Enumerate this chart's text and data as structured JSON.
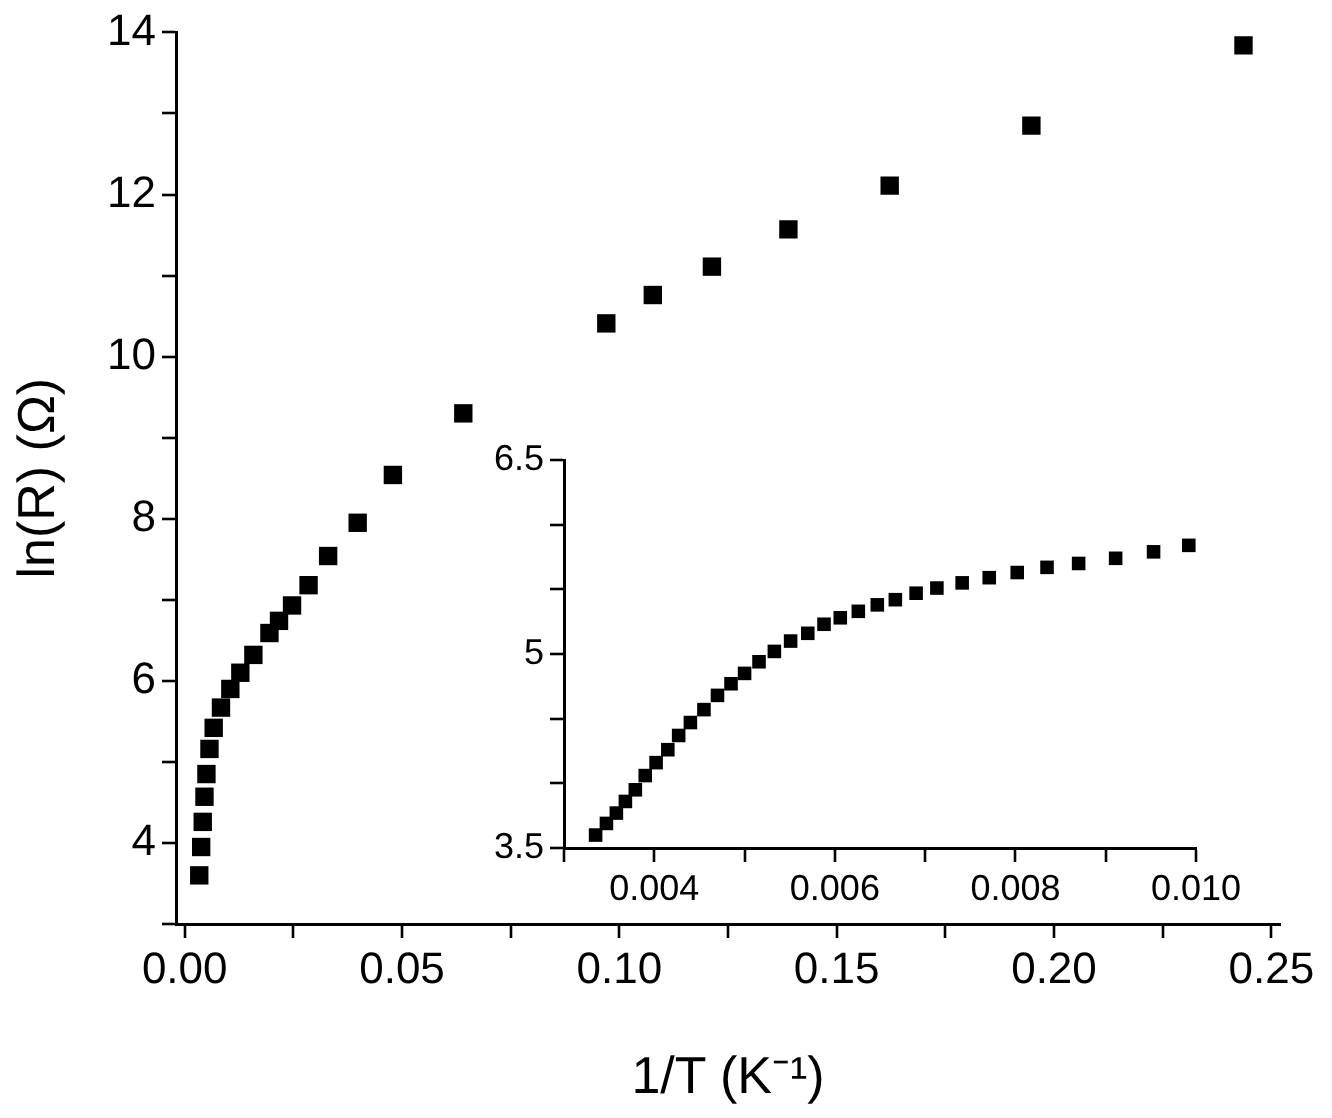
{
  "chart_data": [
    {
      "type": "scatter",
      "xlabel": "1/T (K⁻¹)",
      "ylabel": "ln(R) (Ω)",
      "marker": "square",
      "grid": false,
      "legend": false,
      "xlim": [
        -0.002,
        0.252
      ],
      "ylim": [
        3,
        14
      ],
      "xticks": [
        {
          "value": 0,
          "label": "0.00"
        },
        {
          "value": 0.025,
          "label": null
        },
        0.05,
        {
          "value": 0.075,
          "label": null
        },
        {
          "value": 0.1,
          "label": "0.10"
        },
        {
          "value": 0.125,
          "label": null
        },
        0.15,
        {
          "value": 0.175,
          "label": null
        },
        {
          "value": 0.2,
          "label": "0.20"
        },
        {
          "value": 0.225,
          "label": null
        },
        0.25
      ],
      "yticks": [
        {
          "value": 3,
          "label": null
        },
        4,
        {
          "value": 5,
          "label": null
        },
        6,
        {
          "value": 7,
          "label": null
        },
        8,
        {
          "value": 9,
          "label": null
        },
        10,
        {
          "value": 11,
          "label": null
        },
        12,
        {
          "value": 13,
          "label": null
        },
        14
      ],
      "series": [
        {
          "color": "#000000",
          "x": [
            0.00335,
            0.00379,
            0.00415,
            0.00455,
            0.005,
            0.0057,
            0.00667,
            0.00835,
            0.0105,
            0.0128,
            0.0158,
            0.0195,
            0.0217,
            0.0247,
            0.0285,
            0.033,
            0.0398,
            0.0479,
            0.0641,
            0.097,
            0.1077,
            0.1213,
            0.1389,
            0.1622,
            0.1948,
            0.2436
          ],
          "values": [
            3.6,
            3.95,
            4.26,
            4.57,
            4.85,
            5.16,
            5.42,
            5.67,
            5.9,
            6.1,
            6.32,
            6.59,
            6.74,
            6.93,
            7.18,
            7.54,
            7.95,
            8.54,
            9.3,
            10.41,
            10.76,
            11.11,
            11.57,
            12.11,
            12.85,
            13.84
          ]
        }
      ]
    },
    {
      "type": "scatter",
      "marker": "square",
      "grid": false,
      "legend": false,
      "xlim": [
        0.003,
        0.01
      ],
      "ylim": [
        3.5,
        6.5
      ],
      "xticks": [
        {
          "value": 0.003,
          "label": null
        },
        0.004,
        {
          "value": 0.005,
          "label": null
        },
        0.006,
        {
          "value": 0.007,
          "label": null
        },
        0.008,
        {
          "value": 0.009,
          "label": null
        },
        {
          "value": 0.01,
          "label": "0.010"
        }
      ],
      "yticks": [
        3.5,
        {
          "value": 4,
          "label": null
        },
        {
          "value": 4.5,
          "label": null
        },
        5,
        {
          "value": 5.5,
          "label": null
        },
        {
          "value": 6,
          "label": null
        },
        6.5
      ],
      "series": [
        {
          "color": "#000000",
          "x": [
            0.00335,
            0.00347,
            0.00358,
            0.00368,
            0.00379,
            0.0039,
            0.00402,
            0.00415,
            0.00427,
            0.0044,
            0.00455,
            0.0047,
            0.00485,
            0.005,
            0.00516,
            0.00533,
            0.00551,
            0.0057,
            0.00588,
            0.00606,
            0.00626,
            0.00647,
            0.00667,
            0.0069,
            0.00713,
            0.00741,
            0.00771,
            0.00802,
            0.00835,
            0.0087,
            0.00911,
            0.00953,
            0.00992
          ],
          "values": [
            3.6,
            3.69,
            3.77,
            3.86,
            3.95,
            4.06,
            4.16,
            4.26,
            4.37,
            4.47,
            4.57,
            4.68,
            4.77,
            4.85,
            4.94,
            5.02,
            5.1,
            5.16,
            5.23,
            5.28,
            5.33,
            5.38,
            5.42,
            5.47,
            5.51,
            5.55,
            5.59,
            5.63,
            5.67,
            5.7,
            5.74,
            5.79,
            5.84
          ]
        }
      ]
    }
  ]
}
